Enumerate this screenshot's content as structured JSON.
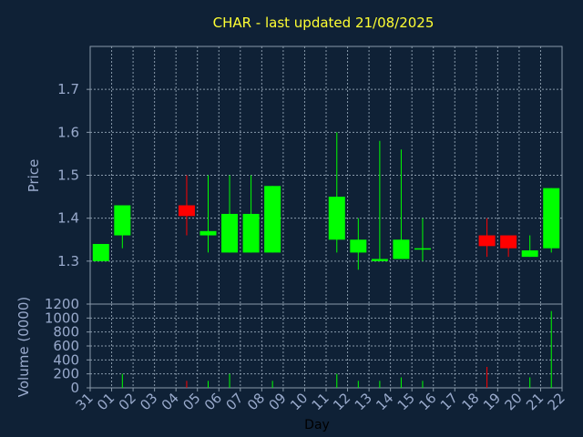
{
  "chart_data": {
    "type": "candlestick",
    "title": "CHAR - last updated 21/08/2025",
    "xlabel": "Day",
    "price_panel": {
      "ylabel": "Price",
      "ylim": [
        1.2,
        1.8
      ],
      "yticks": [
        "1.7",
        "1.6",
        "1.5",
        "1.4",
        "1.3"
      ]
    },
    "volume_panel": {
      "ylabel": "Volume (0000)",
      "ylim": [
        0,
        1200
      ],
      "yticks": [
        "1200",
        "1000",
        "800",
        "600",
        "400",
        "200",
        "0"
      ]
    },
    "x_ticks": [
      "31",
      "01",
      "02",
      "03",
      "04",
      "05",
      "06",
      "07",
      "08",
      "09",
      "10",
      "11",
      "12",
      "13",
      "14",
      "15",
      "16",
      "17",
      "18",
      "19",
      "20",
      "21",
      "22"
    ],
    "candles": [
      {
        "day": "31",
        "open": 1.3,
        "close": 1.34,
        "high": 1.34,
        "low": 1.3,
        "volume": 0
      },
      {
        "day": "01",
        "open": 1.36,
        "close": 1.43,
        "high": 1.43,
        "low": 1.33,
        "volume": 200
      },
      {
        "day": "04",
        "open": 1.43,
        "close": 1.405,
        "high": 1.5,
        "low": 1.36,
        "volume": 100
      },
      {
        "day": "05",
        "open": 1.36,
        "close": 1.37,
        "high": 1.5,
        "low": 1.32,
        "volume": 100
      },
      {
        "day": "06",
        "open": 1.32,
        "close": 1.41,
        "high": 1.5,
        "low": 1.32,
        "volume": 200
      },
      {
        "day": "07",
        "open": 1.32,
        "close": 1.41,
        "high": 1.5,
        "low": 1.32,
        "volume": 0
      },
      {
        "day": "08",
        "open": 1.32,
        "close": 1.475,
        "high": 1.475,
        "low": 1.32,
        "volume": 100
      },
      {
        "day": "11",
        "open": 1.35,
        "close": 1.45,
        "high": 1.6,
        "low": 1.32,
        "volume": 200
      },
      {
        "day": "12",
        "open": 1.32,
        "close": 1.35,
        "high": 1.4,
        "low": 1.28,
        "volume": 100
      },
      {
        "day": "13",
        "open": 1.3,
        "close": 1.305,
        "high": 1.58,
        "low": 1.3,
        "volume": 100
      },
      {
        "day": "14",
        "open": 1.305,
        "close": 1.35,
        "high": 1.56,
        "low": 1.305,
        "volume": 150
      },
      {
        "day": "15",
        "open": 1.33,
        "close": 1.33,
        "high": 1.4,
        "low": 1.3,
        "volume": 100
      },
      {
        "day": "18",
        "open": 1.36,
        "close": 1.335,
        "high": 1.4,
        "low": 1.31,
        "volume": 300
      },
      {
        "day": "19",
        "open": 1.36,
        "close": 1.33,
        "high": 1.36,
        "low": 1.31,
        "volume": 0
      },
      {
        "day": "20",
        "open": 1.31,
        "close": 1.325,
        "high": 1.36,
        "low": 1.31,
        "volume": 150
      },
      {
        "day": "21",
        "open": 1.33,
        "close": 1.47,
        "high": 1.47,
        "low": 1.32,
        "volume": 1100
      }
    ],
    "grid": true,
    "colors": {
      "background": "#0f2136",
      "up": "#00ff00",
      "down": "#ff0000",
      "title": "#ffff33",
      "axis_text": "#99aacc",
      "grid": "#8899aa",
      "frame": "#8899aa"
    }
  }
}
